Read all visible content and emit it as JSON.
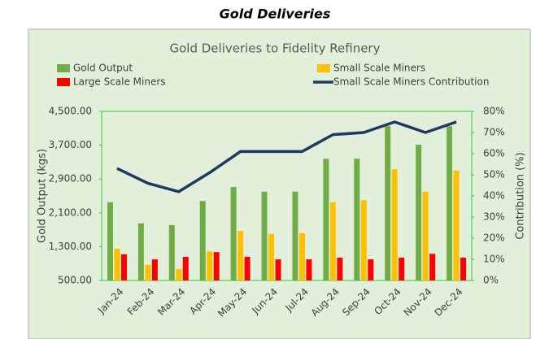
{
  "page_title": "Gold Deliveries",
  "chart_data": {
    "type": "bar",
    "title": "Gold Deliveries to Fidelity Refinery",
    "y_label": "Gold Output (kgs)",
    "y2_label": "Contribution (%)",
    "categories": [
      "Jan-24",
      "Feb-24",
      "Mar-24",
      "Apr-24",
      "May-24",
      "Jun-24",
      "Jul-24",
      "Aug-24",
      "Sep-24",
      "Oct-24",
      "Nov-24",
      "Dec-24"
    ],
    "series": [
      {
        "name": "Gold Output",
        "color": "#70ad47",
        "values": [
          2350,
          1850,
          1810,
          2380,
          2710,
          2600,
          2600,
          3380,
          3380,
          4150,
          3710,
          4150
        ]
      },
      {
        "name": "Small Scale Miners",
        "color": "#ffc000",
        "values": [
          1250,
          870,
          770,
          1190,
          1670,
          1600,
          1620,
          2350,
          2400,
          3130,
          2600,
          3100
        ]
      },
      {
        "name": "Large Scale Miners",
        "color": "#ff0000",
        "values": [
          1120,
          1000,
          1060,
          1170,
          1060,
          1000,
          1000,
          1040,
          1000,
          1040,
          1130,
          1040
        ]
      },
      {
        "name": "Small Scale Miners Contribution",
        "color": "#1f3864",
        "type": "line",
        "axis": "y2",
        "values": [
          53,
          46,
          42,
          51,
          61,
          61,
          61,
          69,
          70,
          75,
          70,
          75
        ]
      }
    ],
    "ylim": [
      500,
      4500
    ],
    "yticks": [
      {
        "value": 500,
        "label": "500.00"
      },
      {
        "value": 1300,
        "label": "1,300.00"
      },
      {
        "value": 2100,
        "label": "2,100.00"
      },
      {
        "value": 2900,
        "label": "2,900.00"
      },
      {
        "value": 3700,
        "label": "3,700.00"
      },
      {
        "value": 4500,
        "label": "4,500.00"
      }
    ],
    "y2lim": [
      0,
      80
    ],
    "y2ticks": [
      {
        "value": 0,
        "label": "0%"
      },
      {
        "value": 10,
        "label": "10%"
      },
      {
        "value": 20,
        "label": "20%"
      },
      {
        "value": 30,
        "label": "30%"
      },
      {
        "value": 40,
        "label": "40%"
      },
      {
        "value": 50,
        "label": "50%"
      },
      {
        "value": 60,
        "label": "60%"
      },
      {
        "value": 70,
        "label": "70%"
      },
      {
        "value": 80,
        "label": "80%"
      }
    ]
  }
}
